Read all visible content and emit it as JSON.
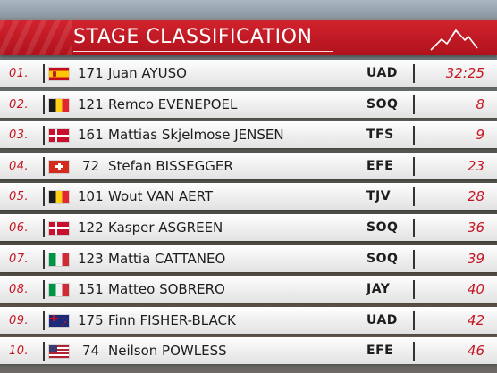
{
  "header": {
    "title": "STAGE CLASSIFICATION",
    "logo_icon": "mountain-peaks-icon"
  },
  "colors": {
    "accent": "#c41622",
    "header_red": "#d2232e"
  },
  "riders": [
    {
      "position": "01.",
      "flag": "es",
      "bib": "171",
      "name": "Juan AYUSO",
      "team": "UAD",
      "time": "32:25"
    },
    {
      "position": "02.",
      "flag": "be",
      "bib": "121",
      "name": "Remco EVENEPOEL",
      "team": "SOQ",
      "time": "8"
    },
    {
      "position": "03.",
      "flag": "dk",
      "bib": "161",
      "name": "Mattias Skjelmose JENSEN",
      "team": "TFS",
      "time": "9"
    },
    {
      "position": "04.",
      "flag": "ch",
      "bib": "72",
      "name": "Stefan BISSEGGER",
      "team": "EFE",
      "time": "23"
    },
    {
      "position": "05.",
      "flag": "be",
      "bib": "101",
      "name": "Wout VAN AERT",
      "team": "TJV",
      "time": "28"
    },
    {
      "position": "06.",
      "flag": "dk",
      "bib": "122",
      "name": "Kasper ASGREEN",
      "team": "SOQ",
      "time": "36"
    },
    {
      "position": "07.",
      "flag": "it",
      "bib": "123",
      "name": "Mattia CATTANEO",
      "team": "SOQ",
      "time": "39"
    },
    {
      "position": "08.",
      "flag": "it",
      "bib": "151",
      "name": "Matteo SOBRERO",
      "team": "JAY",
      "time": "40"
    },
    {
      "position": "09.",
      "flag": "nz",
      "bib": "175",
      "name": "Finn FISHER-BLACK",
      "team": "UAD",
      "time": "42"
    },
    {
      "position": "10.",
      "flag": "us",
      "bib": "74",
      "name": "Neilson POWLESS",
      "team": "EFE",
      "time": "46"
    }
  ]
}
